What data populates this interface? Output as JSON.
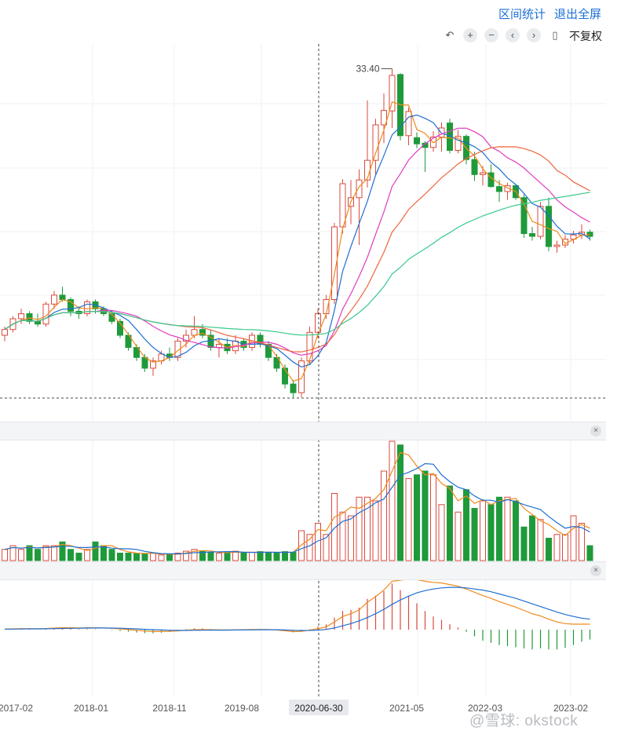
{
  "header": {
    "range_stats": "区间统计",
    "exit_fullscreen": "退出全屏"
  },
  "toolbar": {
    "icons": [
      "undo-icon",
      "zoom-in-icon",
      "zoom-out-icon",
      "pan-left-icon",
      "pan-right-icon",
      "candle-type-icon"
    ],
    "adjust_label": "不复权"
  },
  "watermark": "@雪球: okstock",
  "colors": {
    "up": "#d94a3f",
    "down": "#1f9a3a",
    "ma_short": "#f08a1c",
    "ma_mid": "#1f6fd0",
    "ma_long1": "#e03cc0",
    "ma_long2": "#f0643c",
    "ma_long3": "#38c98c",
    "grid": "#eef0f3"
  },
  "chart_data": {
    "type": "candlestick",
    "max_label": "33.40",
    "crosshair_label": "2020-06-30",
    "x_tick_labels": [
      "2017-02",
      "2018-01",
      "2018-11",
      "2019-08",
      "2020-06-30",
      "2021-05",
      "2022-03",
      "2023-02"
    ],
    "candles": [
      [
        4.6,
        4.9,
        4.4,
        4.8
      ],
      [
        4.8,
        5.3,
        4.7,
        5.2
      ],
      [
        5.2,
        5.6,
        5.0,
        5.4
      ],
      [
        5.4,
        5.5,
        5.0,
        5.1
      ],
      [
        5.1,
        5.4,
        4.9,
        5.0
      ],
      [
        5.0,
        5.9,
        4.9,
        5.8
      ],
      [
        5.8,
        6.4,
        5.6,
        6.2
      ],
      [
        6.2,
        6.6,
        5.9,
        6.0
      ],
      [
        6.0,
        6.1,
        5.3,
        5.5
      ],
      [
        5.5,
        5.7,
        5.2,
        5.4
      ],
      [
        5.4,
        6.0,
        5.3,
        5.9
      ],
      [
        5.9,
        6.0,
        5.4,
        5.6
      ],
      [
        5.6,
        5.7,
        5.3,
        5.4
      ],
      [
        5.4,
        5.5,
        5.0,
        5.1
      ],
      [
        5.1,
        5.2,
        4.5,
        4.6
      ],
      [
        4.6,
        4.7,
        4.1,
        4.2
      ],
      [
        4.2,
        4.3,
        3.8,
        3.9
      ],
      [
        3.9,
        4.0,
        3.5,
        3.6
      ],
      [
        3.6,
        3.9,
        3.4,
        3.8
      ],
      [
        3.8,
        4.1,
        3.7,
        4.0
      ],
      [
        4.0,
        4.2,
        3.8,
        3.9
      ],
      [
        3.9,
        4.5,
        3.8,
        4.4
      ],
      [
        4.4,
        4.8,
        4.2,
        4.6
      ],
      [
        4.6,
        5.3,
        4.5,
        4.8
      ],
      [
        4.8,
        5.0,
        4.5,
        4.6
      ],
      [
        4.6,
        4.8,
        4.1,
        4.2
      ],
      [
        4.2,
        4.5,
        3.9,
        4.3
      ],
      [
        4.3,
        4.5,
        4.0,
        4.1
      ],
      [
        4.1,
        4.6,
        4.0,
        4.4
      ],
      [
        4.4,
        4.5,
        4.1,
        4.2
      ],
      [
        4.2,
        4.7,
        4.1,
        4.6
      ],
      [
        4.6,
        4.7,
        4.2,
        4.3
      ],
      [
        4.3,
        4.4,
        3.8,
        3.9
      ],
      [
        3.9,
        4.0,
        3.5,
        3.6
      ],
      [
        3.6,
        3.7,
        3.1,
        3.2
      ],
      [
        3.2,
        3.3,
        2.9,
        3.0
      ],
      [
        3.0,
        3.9,
        2.9,
        3.8
      ],
      [
        3.8,
        4.9,
        3.7,
        4.7
      ],
      [
        4.7,
        5.6,
        4.5,
        5.4
      ],
      [
        5.4,
        6.2,
        5.2,
        6.0
      ],
      [
        6.0,
        10.6,
        5.8,
        10.3
      ],
      [
        10.3,
        14.7,
        9.8,
        14.2
      ],
      [
        12.0,
        14.6,
        10.5,
        12.8
      ],
      [
        12.8,
        15.8,
        9.0,
        14.6
      ],
      [
        14.6,
        26.4,
        13.8,
        16.9
      ],
      [
        16.9,
        23.0,
        15.2,
        22.0
      ],
      [
        22.0,
        27.8,
        19.2,
        24.5
      ],
      [
        24.4,
        33.4,
        21.5,
        31.8
      ],
      [
        32.0,
        32.3,
        19.6,
        20.3
      ],
      [
        20.3,
        25.0,
        18.9,
        24.3
      ],
      [
        20.0,
        20.8,
        18.5,
        19.1
      ],
      [
        19.2,
        19.5,
        15.5,
        18.6
      ],
      [
        18.6,
        21.0,
        18.0,
        20.1
      ],
      [
        20.1,
        22.4,
        18.0,
        21.5
      ],
      [
        22.3,
        23.0,
        17.8,
        18.2
      ],
      [
        18.2,
        21.2,
        17.8,
        20.2
      ],
      [
        20.2,
        20.5,
        16.4,
        17.0
      ],
      [
        17.0,
        18.0,
        14.5,
        15.2
      ],
      [
        15.2,
        16.2,
        14.0,
        15.4
      ],
      [
        15.4,
        16.4,
        13.8,
        13.9
      ],
      [
        13.9,
        14.6,
        12.4,
        13.4
      ],
      [
        13.4,
        14.3,
        12.6,
        14.0
      ],
      [
        14.0,
        14.1,
        12.6,
        12.8
      ],
      [
        12.8,
        13.1,
        9.5,
        9.8
      ],
      [
        9.8,
        10.3,
        9.3,
        9.6
      ],
      [
        9.6,
        12.4,
        9.4,
        12.0
      ],
      [
        12.0,
        12.8,
        8.6,
        8.9
      ],
      [
        8.9,
        9.3,
        8.5,
        9.0
      ],
      [
        9.0,
        9.7,
        8.8,
        9.4
      ],
      [
        9.4,
        10.0,
        9.1,
        9.7
      ],
      [
        9.7,
        10.5,
        9.4,
        9.9
      ],
      [
        9.9,
        10.1,
        9.3,
        9.6
      ]
    ],
    "volumes": [
      3,
      4,
      3,
      4,
      3,
      4,
      4,
      5,
      3,
      2,
      3,
      5,
      4,
      3,
      2,
      2,
      2,
      1.8,
      2,
      1.5,
      1.6,
      2,
      2.5,
      3,
      2.5,
      2.2,
      2,
      2.2,
      2.5,
      2,
      2.2,
      2.4,
      2.2,
      2,
      2.4,
      2.2,
      8,
      7,
      10,
      7,
      18,
      13,
      12,
      17,
      17,
      16,
      24,
      32,
      31,
      22,
      23,
      24,
      23,
      15,
      20,
      13,
      19,
      14,
      16,
      15,
      17,
      17,
      16,
      9,
      12,
      11,
      6,
      7,
      7,
      12,
      10,
      4
    ],
    "macd_dif": [
      0.05,
      0.07,
      0.09,
      0.09,
      0.08,
      0.1,
      0.14,
      0.18,
      0.18,
      0.16,
      0.17,
      0.17,
      0.15,
      0.12,
      0.07,
      0.01,
      -0.06,
      -0.13,
      -0.17,
      -0.17,
      -0.16,
      -0.11,
      -0.05,
      0.0,
      0.01,
      -0.01,
      -0.02,
      -0.03,
      -0.02,
      -0.01,
      0.01,
      0.02,
      0.01,
      -0.03,
      -0.1,
      -0.18,
      -0.16,
      -0.05,
      0.1,
      0.26,
      0.7,
      1.2,
      1.45,
      1.8,
      2.5,
      3.0,
      3.6,
      4.4,
      4.5,
      4.6,
      4.55,
      4.4,
      4.3,
      4.25,
      4.1,
      3.95,
      3.7,
      3.4,
      3.1,
      2.85,
      2.55,
      2.3,
      2.05,
      1.75,
      1.45,
      1.25,
      0.95,
      0.7,
      0.55,
      0.5,
      0.5,
      0.5
    ],
    "macd_dea": [
      0.04,
      0.05,
      0.06,
      0.07,
      0.07,
      0.08,
      0.09,
      0.11,
      0.12,
      0.13,
      0.14,
      0.15,
      0.15,
      0.14,
      0.13,
      0.1,
      0.07,
      0.03,
      0.0,
      -0.03,
      -0.06,
      -0.07,
      -0.07,
      -0.06,
      -0.05,
      -0.04,
      -0.04,
      -0.04,
      -0.03,
      -0.03,
      -0.02,
      -0.01,
      -0.01,
      -0.01,
      -0.03,
      -0.06,
      -0.08,
      -0.07,
      -0.04,
      0.02,
      0.15,
      0.35,
      0.55,
      0.8,
      1.1,
      1.45,
      1.85,
      2.3,
      2.7,
      3.05,
      3.35,
      3.55,
      3.7,
      3.8,
      3.85,
      3.85,
      3.8,
      3.7,
      3.6,
      3.45,
      3.25,
      3.05,
      2.85,
      2.6,
      2.35,
      2.1,
      1.85,
      1.6,
      1.38,
      1.2,
      1.05,
      0.95
    ]
  }
}
